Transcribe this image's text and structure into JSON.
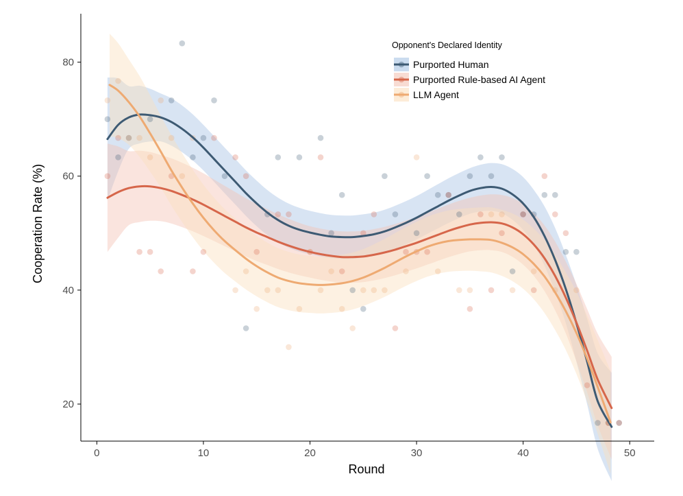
{
  "chart_data": {
    "type": "scatter",
    "xlabel": "Round",
    "ylabel": "Cooperation Rate (%)",
    "xlim": [
      -1.5,
      52.3
    ],
    "ylim": [
      13.5,
      88.5
    ],
    "xticks": [
      0,
      10,
      20,
      30,
      40,
      50
    ],
    "yticks": [
      20,
      40,
      60,
      80
    ],
    "grid": false,
    "legend_position": "top-right",
    "legend_title": "Opponent's Declared Identity",
    "series": [
      {
        "name": "Purported Human",
        "color": "#3d5a73",
        "band_color": "#a9c4e4",
        "points": [
          [
            1,
            70
          ],
          [
            2,
            63.3
          ],
          [
            3,
            66.7
          ],
          [
            5,
            70
          ],
          [
            7,
            73.3
          ],
          [
            8,
            83.3
          ],
          [
            9,
            63.3
          ],
          [
            10,
            66.7
          ],
          [
            11,
            73.3
          ],
          [
            12,
            60
          ],
          [
            14,
            33.3
          ],
          [
            16,
            53.3
          ],
          [
            17,
            63.3
          ],
          [
            19,
            63.3
          ],
          [
            21,
            66.7
          ],
          [
            22,
            50
          ],
          [
            23,
            56.7
          ],
          [
            24,
            40
          ],
          [
            25,
            36.7
          ],
          [
            27,
            60
          ],
          [
            28,
            53.3
          ],
          [
            30,
            50
          ],
          [
            31,
            60
          ],
          [
            32,
            56.7
          ],
          [
            33,
            56.7
          ],
          [
            34,
            53.3
          ],
          [
            35,
            60
          ],
          [
            36,
            63.3
          ],
          [
            37,
            60
          ],
          [
            38,
            63.3
          ],
          [
            39,
            43.3
          ],
          [
            40,
            53.3
          ],
          [
            41,
            53.3
          ],
          [
            42,
            56.7
          ],
          [
            43,
            56.7
          ],
          [
            44,
            46.7
          ],
          [
            45,
            46.7
          ],
          [
            47,
            16.7
          ],
          [
            48,
            16.7
          ],
          [
            49,
            16.7
          ]
        ],
        "fit": [
          [
            1,
            66.5
          ],
          [
            2,
            69
          ],
          [
            3,
            70.3
          ],
          [
            4,
            70.8
          ],
          [
            5,
            70.7
          ],
          [
            6,
            70.3
          ],
          [
            7,
            69.5
          ],
          [
            8,
            68.3
          ],
          [
            9,
            66.8
          ],
          [
            10,
            65
          ],
          [
            11,
            63
          ],
          [
            12,
            61
          ],
          [
            13,
            59
          ],
          [
            14,
            57
          ],
          [
            15,
            55.2
          ],
          [
            16,
            53.6
          ],
          [
            17,
            52.3
          ],
          [
            18,
            51.3
          ],
          [
            19,
            50.6
          ],
          [
            20,
            50.1
          ],
          [
            21,
            49.7
          ],
          [
            22,
            49.4
          ],
          [
            23,
            49.3
          ],
          [
            24,
            49.3
          ],
          [
            25,
            49.5
          ],
          [
            26,
            49.8
          ],
          [
            27,
            50.3
          ],
          [
            28,
            51
          ],
          [
            29,
            51.8
          ],
          [
            30,
            52.7
          ],
          [
            31,
            53.7
          ],
          [
            32,
            54.7
          ],
          [
            33,
            55.7
          ],
          [
            34,
            56.6
          ],
          [
            35,
            57.4
          ],
          [
            36,
            57.9
          ],
          [
            37,
            58.1
          ],
          [
            38,
            57.8
          ],
          [
            39,
            56.8
          ],
          [
            40,
            55.2
          ],
          [
            41,
            52.8
          ],
          [
            42,
            49.5
          ],
          [
            43,
            45.3
          ],
          [
            44,
            40.2
          ],
          [
            45,
            34.2
          ],
          [
            46,
            27.5
          ],
          [
            47,
            20.5
          ],
          [
            48.3,
            16
          ]
        ],
        "band_half": [
          [
            1,
            10.8
          ],
          [
            3,
            5.5
          ],
          [
            6,
            4.2
          ],
          [
            10,
            4
          ],
          [
            15,
            4
          ],
          [
            20,
            3.8
          ],
          [
            25,
            3.8
          ],
          [
            30,
            3.8
          ],
          [
            35,
            4
          ],
          [
            38,
            4.3
          ],
          [
            41,
            4.8
          ],
          [
            44,
            6
          ],
          [
            46,
            7.5
          ],
          [
            48.3,
            9.5
          ]
        ]
      },
      {
        "name": "Purported Rule-based AI Agent",
        "color": "#d6664a",
        "band_color": "#f3c4b6",
        "points": [
          [
            1,
            60
          ],
          [
            2,
            66.7
          ],
          [
            4,
            46.7
          ],
          [
            5,
            46.7
          ],
          [
            6,
            43.3
          ],
          [
            7,
            60
          ],
          [
            9,
            43.3
          ],
          [
            10,
            46.7
          ],
          [
            11,
            66.7
          ],
          [
            13,
            63.3
          ],
          [
            14,
            60
          ],
          [
            15,
            46.7
          ],
          [
            17,
            53.3
          ],
          [
            18,
            53.3
          ],
          [
            20,
            46.7
          ],
          [
            21,
            63.3
          ],
          [
            23,
            43.3
          ],
          [
            25,
            50
          ],
          [
            26,
            53.3
          ],
          [
            28,
            33.3
          ],
          [
            29,
            46.7
          ],
          [
            30,
            46.7
          ],
          [
            31,
            46.7
          ],
          [
            33,
            56.7
          ],
          [
            35,
            36.7
          ],
          [
            36,
            53.3
          ],
          [
            37,
            40
          ],
          [
            38,
            50
          ],
          [
            40,
            53.3
          ],
          [
            41,
            40
          ],
          [
            42,
            60
          ],
          [
            43,
            53.3
          ],
          [
            44,
            50
          ],
          [
            46,
            23.3
          ],
          [
            48,
            16.7
          ],
          [
            49,
            16.7
          ]
        ],
        "fit": [
          [
            1,
            56.2
          ],
          [
            2,
            57.2
          ],
          [
            3,
            57.9
          ],
          [
            4,
            58.2
          ],
          [
            5,
            58.2
          ],
          [
            6,
            57.9
          ],
          [
            7,
            57.4
          ],
          [
            8,
            56.7
          ],
          [
            9,
            55.9
          ],
          [
            10,
            55
          ],
          [
            11,
            54
          ],
          [
            12,
            53
          ],
          [
            13,
            52
          ],
          [
            14,
            51
          ],
          [
            15,
            50.1
          ],
          [
            16,
            49.3
          ],
          [
            17,
            48.5
          ],
          [
            18,
            47.8
          ],
          [
            19,
            47.2
          ],
          [
            20,
            46.7
          ],
          [
            21,
            46.3
          ],
          [
            22,
            46
          ],
          [
            23,
            45.8
          ],
          [
            24,
            45.8
          ],
          [
            25,
            45.9
          ],
          [
            26,
            46.2
          ],
          [
            27,
            46.6
          ],
          [
            28,
            47.1
          ],
          [
            29,
            47.7
          ],
          [
            30,
            48.3
          ],
          [
            31,
            49
          ],
          [
            32,
            49.7
          ],
          [
            33,
            50.4
          ],
          [
            34,
            51
          ],
          [
            35,
            51.5
          ],
          [
            36,
            51.8
          ],
          [
            37,
            51.9
          ],
          [
            38,
            51.7
          ],
          [
            39,
            51
          ],
          [
            40,
            49.8
          ],
          [
            41,
            48
          ],
          [
            42,
            45.6
          ],
          [
            43,
            42.5
          ],
          [
            44,
            38.7
          ],
          [
            45,
            34.3
          ],
          [
            46,
            29.4
          ],
          [
            47,
            24.3
          ],
          [
            48.3,
            19.3
          ]
        ],
        "band_half": [
          [
            1,
            9.5
          ],
          [
            3,
            6.5
          ],
          [
            6,
            5.8
          ],
          [
            10,
            5.5
          ],
          [
            15,
            5
          ],
          [
            20,
            4.5
          ],
          [
            25,
            4.5
          ],
          [
            30,
            4.5
          ],
          [
            35,
            4.7
          ],
          [
            38,
            5
          ],
          [
            41,
            5.5
          ],
          [
            44,
            6.3
          ],
          [
            46,
            7.3
          ],
          [
            48.3,
            9
          ]
        ]
      },
      {
        "name": "LLM Agent",
        "color": "#eeaa72",
        "band_color": "#fbdfbe",
        "points": [
          [
            1,
            73.3
          ],
          [
            2,
            76.7
          ],
          [
            3,
            66.7
          ],
          [
            4,
            66.7
          ],
          [
            5,
            63.3
          ],
          [
            6,
            73.3
          ],
          [
            7,
            66.7
          ],
          [
            8,
            60
          ],
          [
            9,
            66.7
          ],
          [
            13,
            40
          ],
          [
            14,
            43.3
          ],
          [
            15,
            36.7
          ],
          [
            16,
            40
          ],
          [
            17,
            40
          ],
          [
            18,
            30
          ],
          [
            19,
            36.7
          ],
          [
            20,
            46.7
          ],
          [
            21,
            40
          ],
          [
            22,
            43.3
          ],
          [
            23,
            36.7
          ],
          [
            24,
            33.3
          ],
          [
            25,
            40
          ],
          [
            26,
            40
          ],
          [
            27,
            40
          ],
          [
            29,
            43.3
          ],
          [
            30,
            63.3
          ],
          [
            32,
            43.3
          ],
          [
            34,
            40
          ],
          [
            35,
            40
          ],
          [
            37,
            53.3
          ],
          [
            38,
            53.3
          ],
          [
            39,
            40
          ],
          [
            41,
            43.3
          ],
          [
            43,
            40
          ],
          [
            45,
            40
          ],
          [
            48,
            16.7
          ]
        ],
        "fit": [
          [
            1.2,
            76
          ],
          [
            2,
            75
          ],
          [
            3,
            73
          ],
          [
            4,
            70.5
          ],
          [
            5,
            67.5
          ],
          [
            6,
            64.3
          ],
          [
            7,
            61
          ],
          [
            8,
            58
          ],
          [
            9,
            55.2
          ],
          [
            10,
            52.7
          ],
          [
            11,
            50.5
          ],
          [
            12,
            48.6
          ],
          [
            13,
            47
          ],
          [
            14,
            45.5
          ],
          [
            15,
            44.2
          ],
          [
            16,
            43.1
          ],
          [
            17,
            42.2
          ],
          [
            18,
            41.6
          ],
          [
            19,
            41.2
          ],
          [
            20,
            41
          ],
          [
            21,
            40.9
          ],
          [
            22,
            41
          ],
          [
            23,
            41.2
          ],
          [
            24,
            41.6
          ],
          [
            25,
            42.2
          ],
          [
            26,
            43
          ],
          [
            27,
            43.9
          ],
          [
            28,
            44.9
          ],
          [
            29,
            45.9
          ],
          [
            30,
            46.8
          ],
          [
            31,
            47.6
          ],
          [
            32,
            48.2
          ],
          [
            33,
            48.6
          ],
          [
            34,
            48.8
          ],
          [
            35,
            48.9
          ],
          [
            36,
            48.9
          ],
          [
            37,
            48.8
          ],
          [
            38,
            48.3
          ],
          [
            39,
            47.5
          ],
          [
            40,
            46.3
          ],
          [
            41,
            44.6
          ],
          [
            42,
            42.4
          ],
          [
            43,
            39.6
          ],
          [
            44,
            36.3
          ],
          [
            45,
            32.5
          ],
          [
            46,
            28
          ],
          [
            47,
            23
          ],
          [
            48.2,
            16.8
          ]
        ],
        "band_half": [
          [
            1.2,
            9
          ],
          [
            3,
            7.5
          ],
          [
            6,
            6.3
          ],
          [
            10,
            5.8
          ],
          [
            15,
            5.3
          ],
          [
            20,
            5
          ],
          [
            25,
            5
          ],
          [
            30,
            5.2
          ],
          [
            35,
            5.5
          ],
          [
            38,
            5.8
          ],
          [
            41,
            6.2
          ],
          [
            44,
            6.8
          ],
          [
            46,
            7.6
          ],
          [
            48.2,
            9
          ]
        ]
      }
    ]
  }
}
